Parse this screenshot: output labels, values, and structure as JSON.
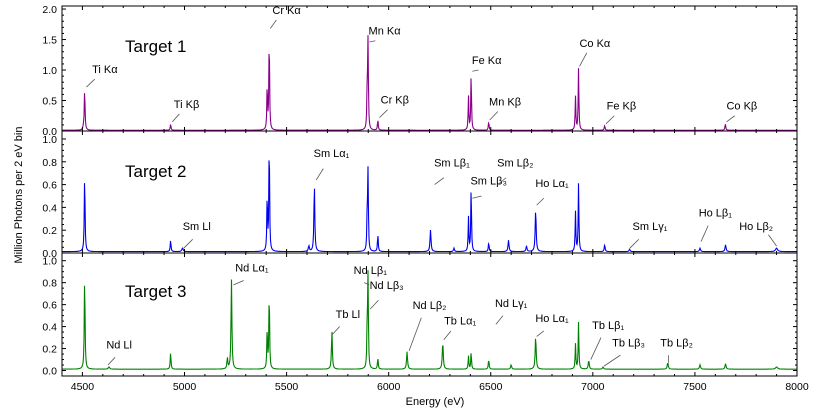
{
  "figure": {
    "ylabel": "Million Photons per 2 eV bin",
    "xlabel": "Energy (eV)"
  },
  "chart_data": {
    "type": "line",
    "xlim": [
      4400,
      8000
    ],
    "xticks": [
      4500,
      5000,
      5500,
      6000,
      6500,
      7000,
      7500,
      8000
    ],
    "xlabel": "Energy (eV)",
    "ylabel": "Million Photons per 2 eV bin",
    "panels": [
      {
        "name": "Target 1",
        "color": "#8b008b",
        "ylim": [
          0,
          2.05
        ],
        "yticks": [
          "0.0",
          "0.5",
          "1.0",
          "1.5",
          "2.0"
        ],
        "peaks": [
          {
            "x": 4511,
            "h": 0.68,
            "w": 2.2
          },
          {
            "x": 4505,
            "h": 0.05,
            "w": 2.2
          },
          {
            "x": 4932,
            "h": 0.1,
            "w": 2.2
          },
          {
            "x": 5405,
            "h": 0.75,
            "w": 2.0
          },
          {
            "x": 5415,
            "h": 1.6,
            "w": 2.0
          },
          {
            "x": 5895,
            "h": 0.72,
            "w": 2.0
          },
          {
            "x": 5899,
            "h": 1.42,
            "w": 2.0
          },
          {
            "x": 5947,
            "h": 0.17,
            "w": 2.2
          },
          {
            "x": 6391,
            "h": 0.55,
            "w": 2.0
          },
          {
            "x": 6404,
            "h": 0.95,
            "w": 2.0
          },
          {
            "x": 6490,
            "h": 0.14,
            "w": 2.2
          },
          {
            "x": 6915,
            "h": 0.55,
            "w": 2.0
          },
          {
            "x": 6930,
            "h": 1.02,
            "w": 2.0
          },
          {
            "x": 7058,
            "h": 0.08,
            "w": 2.2
          },
          {
            "x": 7649,
            "h": 0.11,
            "w": 2.2
          }
        ],
        "labels": [
          {
            "text": "Ti Kα",
            "x": 4610,
            "y": 0.95,
            "lx1": 4560,
            "ly1": 0.85,
            "lx2": 4520,
            "ly2": 0.72
          },
          {
            "text": "Ti Kβ",
            "x": 5010,
            "y": 0.38,
            "lx1": 4975,
            "ly1": 0.28,
            "lx2": 4940,
            "ly2": 0.15
          },
          {
            "text": "Cr Kα",
            "x": 5500,
            "y": 1.92,
            "lx1": 5450,
            "ly1": 1.82,
            "lx2": 5420,
            "ly2": 1.68
          },
          {
            "text": "Mn Kα",
            "x": 5980,
            "y": 1.58,
            "lx1": 5935,
            "ly1": 1.48,
            "lx2": 5905,
            "ly2": 1.46
          },
          {
            "text": "Cr Kβ",
            "x": 6030,
            "y": 0.45,
            "lx1": 5995,
            "ly1": 0.35,
            "lx2": 5955,
            "ly2": 0.22
          },
          {
            "text": "Fe Kα",
            "x": 6480,
            "y": 1.1,
            "lx1": 6440,
            "ly1": 1.0,
            "lx2": 6410,
            "ly2": 0.98
          },
          {
            "text": "Mn Kβ",
            "x": 6570,
            "y": 0.42,
            "lx1": 6535,
            "ly1": 0.32,
            "lx2": 6495,
            "ly2": 0.18
          },
          {
            "text": "Co Kα",
            "x": 7010,
            "y": 1.38,
            "lx1": 6970,
            "ly1": 1.28,
            "lx2": 6935,
            "ly2": 1.06
          },
          {
            "text": "Fe Kβ",
            "x": 7140,
            "y": 0.35,
            "lx1": 7105,
            "ly1": 0.25,
            "lx2": 7065,
            "ly2": 0.12
          },
          {
            "text": "Co Kβ",
            "x": 7730,
            "y": 0.35,
            "lx1": 7695,
            "ly1": 0.25,
            "lx2": 7655,
            "ly2": 0.15
          }
        ]
      },
      {
        "name": "Target 2",
        "color": "#0000ee",
        "ylim": [
          0,
          1.07
        ],
        "yticks": [
          "0.0",
          "0.2",
          "0.4",
          "0.6",
          "0.8",
          "1.0"
        ],
        "peaks": [
          {
            "x": 4511,
            "h": 0.68,
            "w": 2.2
          },
          {
            "x": 4932,
            "h": 0.1,
            "w": 2.2
          },
          {
            "x": 4990,
            "h": 0.03,
            "w": 4.0
          },
          {
            "x": 5405,
            "h": 0.5,
            "w": 2.0
          },
          {
            "x": 5415,
            "h": 1.02,
            "w": 2.0
          },
          {
            "x": 5609,
            "h": 0.05,
            "w": 3.0
          },
          {
            "x": 5636,
            "h": 0.6,
            "w": 2.5
          },
          {
            "x": 5895,
            "h": 0.35,
            "w": 2.0
          },
          {
            "x": 5899,
            "h": 0.68,
            "w": 2.0
          },
          {
            "x": 5947,
            "h": 0.15,
            "w": 2.2
          },
          {
            "x": 6205,
            "h": 0.19,
            "w": 2.8
          },
          {
            "x": 6320,
            "h": 0.03,
            "w": 2.8
          },
          {
            "x": 6391,
            "h": 0.3,
            "w": 2.0
          },
          {
            "x": 6404,
            "h": 0.58,
            "w": 2.0
          },
          {
            "x": 6490,
            "h": 0.08,
            "w": 2.2
          },
          {
            "x": 6587,
            "h": 0.1,
            "w": 2.8
          },
          {
            "x": 6675,
            "h": 0.05,
            "w": 2.8
          },
          {
            "x": 6720,
            "h": 0.37,
            "w": 2.8
          },
          {
            "x": 6915,
            "h": 0.35,
            "w": 2.0
          },
          {
            "x": 6930,
            "h": 0.6,
            "w": 2.0
          },
          {
            "x": 7058,
            "h": 0.06,
            "w": 2.5
          },
          {
            "x": 7180,
            "h": 0.02,
            "w": 3.0
          },
          {
            "x": 7525,
            "h": 0.03,
            "w": 3.0
          },
          {
            "x": 7650,
            "h": 0.06,
            "w": 3.0
          },
          {
            "x": 7900,
            "h": 0.03,
            "w": 6.0
          }
        ],
        "labels": [
          {
            "text": "Sm Ll",
            "x": 5060,
            "y": 0.2,
            "lx1": 5040,
            "ly1": 0.12,
            "lx2": 4995,
            "ly2": 0.04
          },
          {
            "text": "Sm Lα₁",
            "x": 5720,
            "y": 0.84,
            "lx1": 5680,
            "ly1": 0.74,
            "lx2": 5645,
            "ly2": 0.64
          },
          {
            "text": "Sm Lβ₁",
            "x": 6310,
            "y": 0.76,
            "lx1": 6270,
            "ly1": 0.66,
            "lx2": 6225,
            "ly2": 0.6
          },
          {
            "text": "Sm Lβ₃",
            "x": 6490,
            "y": 0.6,
            "lx1": 6455,
            "ly1": 0.5,
            "lx2": 6410,
            "ly2": 0.48
          },
          {
            "text": "Sm Lβ₂",
            "x": 6620,
            "y": 0.76,
            "lx1": 6575,
            "ly1": 0.66,
            "lx2": 6535,
            "ly2": 0.6
          },
          {
            "text": "Ho Lα₁",
            "x": 6800,
            "y": 0.58,
            "lx1": 6760,
            "ly1": 0.48,
            "lx2": 6725,
            "ly2": 0.42
          },
          {
            "text": "Sm Lγ₁",
            "x": 7280,
            "y": 0.2,
            "lx1": 7225,
            "ly1": 0.12,
            "lx2": 7180,
            "ly2": 0.04
          },
          {
            "text": "Ho Lβ₁",
            "x": 7600,
            "y": 0.32,
            "lx1": 7565,
            "ly1": 0.24,
            "lx2": 7530,
            "ly2": 0.1
          },
          {
            "text": "Ho Lβ₂",
            "x": 7800,
            "y": 0.2,
            "lx1": 7860,
            "ly1": 0.16,
            "lx2": 7900,
            "ly2": 0.06
          }
        ]
      },
      {
        "name": "Target 3",
        "color": "#008000",
        "ylim": [
          -0.05,
          1.07
        ],
        "yticks": [
          "0.0",
          "0.2",
          "0.4",
          "0.6",
          "0.8",
          "1.0"
        ],
        "peaks": [
          {
            "x": 4511,
            "h": 0.86,
            "w": 2.2
          },
          {
            "x": 4630,
            "h": 0.02,
            "w": 4.0
          },
          {
            "x": 4932,
            "h": 0.15,
            "w": 2.2
          },
          {
            "x": 5210,
            "h": 0.1,
            "w": 2.5
          },
          {
            "x": 5230,
            "h": 0.82,
            "w": 2.5
          },
          {
            "x": 5405,
            "h": 0.38,
            "w": 2.0
          },
          {
            "x": 5415,
            "h": 0.74,
            "w": 2.0
          },
          {
            "x": 5722,
            "h": 0.35,
            "w": 2.5
          },
          {
            "x": 5895,
            "h": 0.42,
            "w": 2.0
          },
          {
            "x": 5899,
            "h": 0.82,
            "w": 2.0
          },
          {
            "x": 5947,
            "h": 0.1,
            "w": 2.2
          },
          {
            "x": 6090,
            "h": 0.16,
            "w": 2.8
          },
          {
            "x": 6265,
            "h": 0.25,
            "w": 2.8
          },
          {
            "x": 6391,
            "h": 0.12,
            "w": 2.0
          },
          {
            "x": 6404,
            "h": 0.16,
            "w": 2.0
          },
          {
            "x": 6490,
            "h": 0.09,
            "w": 2.2
          },
          {
            "x": 6600,
            "h": 0.04,
            "w": 2.8
          },
          {
            "x": 6720,
            "h": 0.3,
            "w": 2.8
          },
          {
            "x": 6915,
            "h": 0.23,
            "w": 2.0
          },
          {
            "x": 6930,
            "h": 0.43,
            "w": 2.0
          },
          {
            "x": 6980,
            "h": 0.08,
            "w": 2.8
          },
          {
            "x": 7050,
            "h": 0.02,
            "w": 3.0
          },
          {
            "x": 7367,
            "h": 0.06,
            "w": 3.0
          },
          {
            "x": 7525,
            "h": 0.04,
            "w": 3.0
          },
          {
            "x": 7650,
            "h": 0.05,
            "w": 3.0
          },
          {
            "x": 7900,
            "h": 0.02,
            "w": 6.0
          }
        ],
        "labels": [
          {
            "text": "Nd Ll",
            "x": 4680,
            "y": 0.2,
            "lx1": 4660,
            "ly1": 0.12,
            "lx2": 4625,
            "ly2": 0.05
          },
          {
            "text": "Nd Lα₁",
            "x": 5330,
            "y": 0.9,
            "lx1": 5290,
            "ly1": 0.82,
            "lx2": 5240,
            "ly2": 0.78
          },
          {
            "text": "Tb Ll",
            "x": 5800,
            "y": 0.48,
            "lx1": 5760,
            "ly1": 0.4,
            "lx2": 5725,
            "ly2": 0.33
          },
          {
            "text": "Nd Lβ₁",
            "x": 5910,
            "y": 0.88,
            "lx1": 5880,
            "ly1": 0.8,
            "lx2": 5905,
            "ly2": 0.78
          },
          {
            "text": "Nd Lβ₃",
            "x": 5990,
            "y": 0.74,
            "lx1": 5950,
            "ly1": 0.64,
            "lx2": 5910,
            "ly2": 0.56
          },
          {
            "text": "Nd Lβ₂",
            "x": 6200,
            "y": 0.56,
            "lx1": 6160,
            "ly1": 0.48,
            "lx2": 6100,
            "ly2": 0.18
          },
          {
            "text": "Tb Lα₁",
            "x": 6350,
            "y": 0.42,
            "lx1": 6305,
            "ly1": 0.36,
            "lx2": 6270,
            "ly2": 0.28
          },
          {
            "text": "Nd Lγ₁",
            "x": 6600,
            "y": 0.58,
            "lx1": 6560,
            "ly1": 0.5,
            "lx2": 6525,
            "ly2": 0.42
          },
          {
            "text": "Ho Lα₁",
            "x": 6800,
            "y": 0.44,
            "lx1": 6760,
            "ly1": 0.36,
            "lx2": 6725,
            "ly2": 0.31
          },
          {
            "text": "Tb Lβ₁",
            "x": 7075,
            "y": 0.38,
            "lx1": 7040,
            "ly1": 0.3,
            "lx2": 6990,
            "ly2": 0.1
          },
          {
            "text": "Tb Lβ₃",
            "x": 7175,
            "y": 0.22,
            "lx1": 7135,
            "ly1": 0.14,
            "lx2": 7055,
            "ly2": 0.04
          },
          {
            "text": "Tb Lβ₂",
            "x": 7410,
            "y": 0.22,
            "lx1": 7370,
            "ly1": 0.14,
            "lx2": 7370,
            "ly2": 0.07
          }
        ]
      }
    ]
  }
}
